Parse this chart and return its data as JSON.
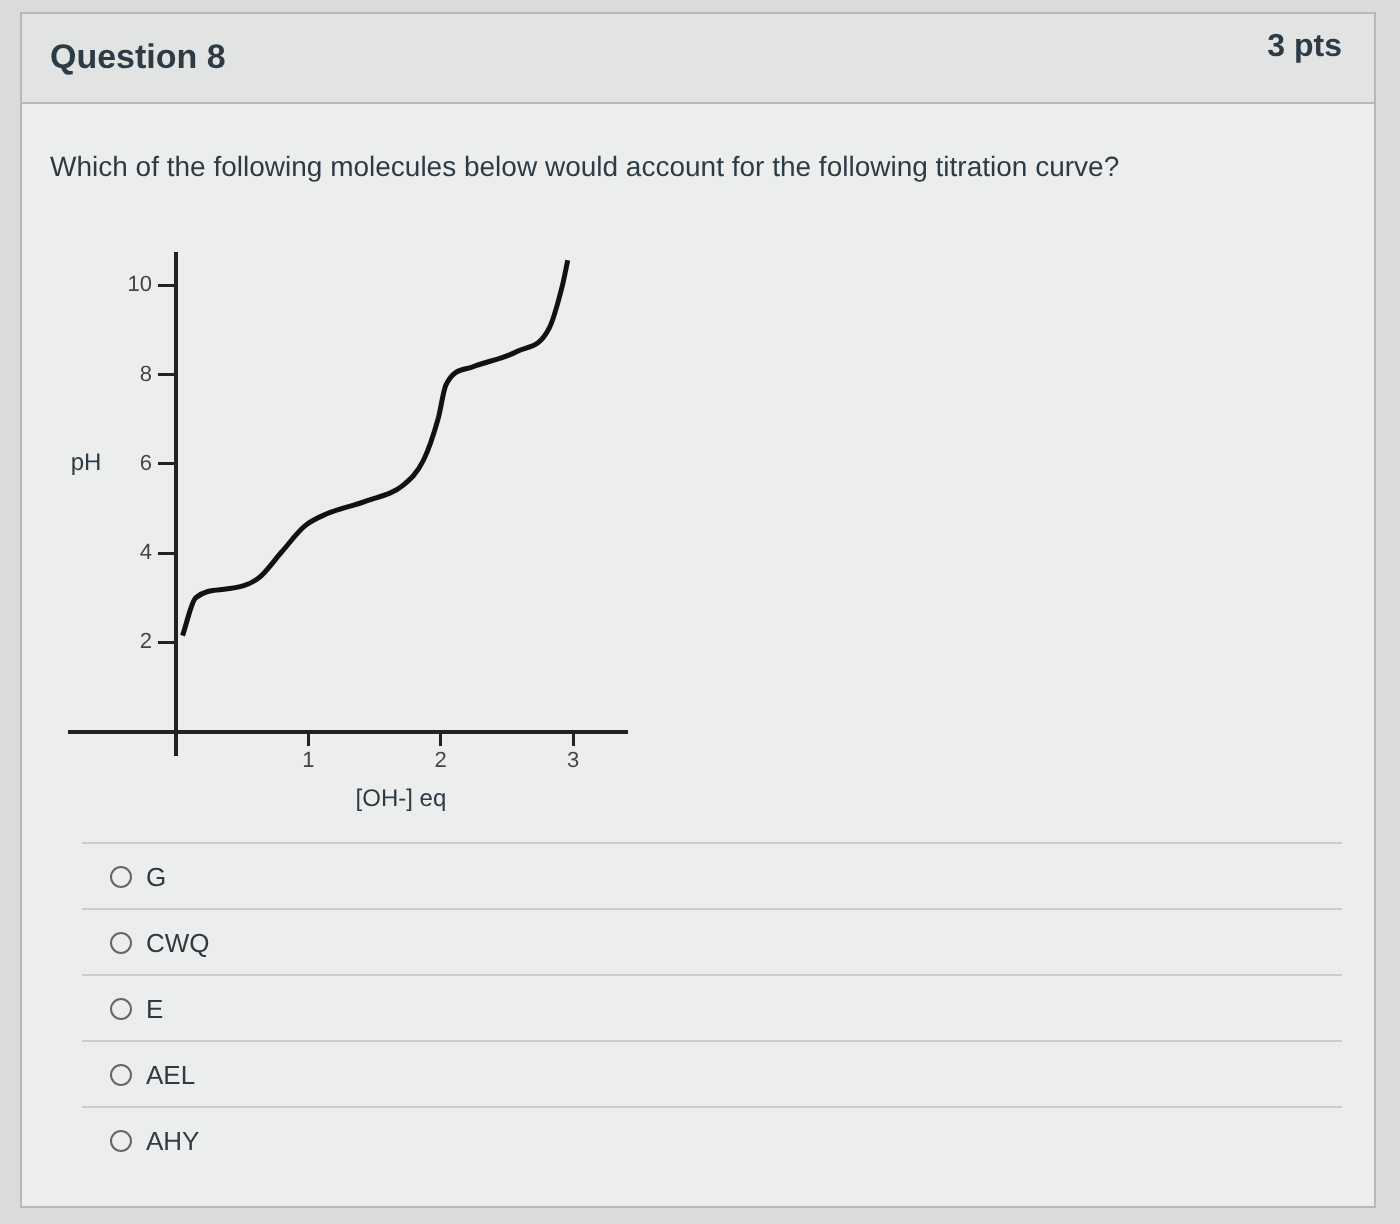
{
  "chart_data": {
    "type": "line",
    "title": "Which of the following molecules below would account for the following titration curve?",
    "xlabel": "[OH-] eq",
    "ylabel": "pH",
    "x": [
      0.05,
      0.15,
      0.39,
      0.62,
      0.8,
      0.97,
      1.14,
      1.43,
      1.72,
      1.87,
      1.98,
      2.04,
      2.24,
      2.58,
      2.82,
      2.92,
      2.96
    ],
    "series": [
      {
        "color": "#111111",
        "values": [
          2.15,
          3.0,
          3.2,
          3.43,
          4.03,
          4.6,
          4.88,
          5.16,
          5.53,
          6.08,
          7.0,
          7.77,
          8.17,
          8.52,
          9.04,
          10.0,
          10.56
        ]
      }
    ],
    "xlim": [
      -0.8,
      3.4
    ],
    "ylim": [
      -0.5,
      10.7
    ],
    "xticks": [
      1,
      2,
      3
    ],
    "yticks": [
      2,
      4,
      6,
      8,
      10
    ],
    "grid": false,
    "legend": false,
    "marker": "none",
    "line_style": "solid",
    "annotations": [
      "Question 8",
      "3 pts",
      "G",
      "CWQ",
      "E",
      "AEL",
      "AHY"
    ]
  }
}
